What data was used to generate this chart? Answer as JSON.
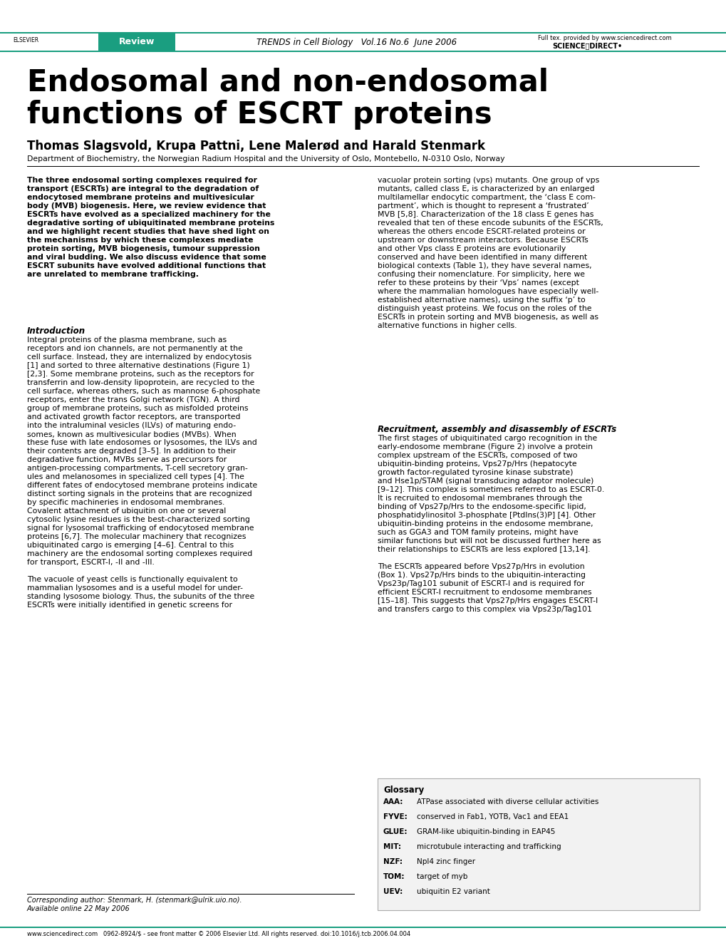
{
  "page_bg": "#ffffff",
  "teal_color": "#1a9e80",
  "link_color": "#2563a8",
  "review_label": "Review",
  "journal_header": "TRENDS in Cell Biology   Vol.16 No.6  June 2006",
  "full_text_label": "Full tex. provided by www.sciencedirect.com",
  "title_line1": "Endosomal and non-endosomal",
  "title_line2": "functions of ESCRT proteins",
  "authors": "Thomas Slagsvold, Krupa Pattni, Lene Malerød and Harald Stenmark",
  "affiliation": "Department of Biochemistry, the Norwegian Radium Hospital and the University of Oslo, Montebello, N-0310 Oslo, Norway",
  "abstract_bold_text": "The three endosomal sorting complexes required for\ntransport (ESCRTs) are integral to the degradation of\nendocytosed membrane proteins and multivesicular\nbody (MVB) biogenesis. Here, we review evidence that\nESCRTs have evolved as a specialized machinery for the\ndegradative sorting of ubiquitinated membrane proteins\nand we highlight recent studies that have shed light on\nthe mechanisms by which these complexes mediate\nprotein sorting, MVB biogenesis, tumour suppression\nand viral budding. We also discuss evidence that some\nESCRT subunits have evolved additional functions that\nare unrelated to membrane trafficking.",
  "right_abstract_text": "vacuolar protein sorting (vps) mutants. One group of vps\nmutants, called class E, is characterized by an enlarged\nmultilamellar endocytic compartment, the ‘class E com-\npartment’, which is thought to represent a ‘frustrated’\nMVB [5,8]. Characterization of the 18 class E genes has\nrevealed that ten of these encode subunits of the ESCRTs,\nwhereas the others encode ESCRT-related proteins or\nupstream or downstream interactors. Because ESCRTs\nand other Vps class E proteins are evolutionarily\nconserved and have been identified in many different\nbiological contexts (Table 1), they have several names,\nconfusing their nomenclature. For simplicity, here we\nrefer to these proteins by their ‘Vps’ names (except\nwhere the mammalian homologues have especially well-\nestablished alternative names), using the suffix ‘p’ to\ndistinguish yeast proteins. We focus on the roles of the\nESCRTs in protein sorting and MVB biogenesis, as well as\nalternative functions in higher cells.",
  "intro_heading": "Introduction",
  "intro_text": "Integral proteins of the plasma membrane, such as\nreceptors and ion channels, are not permanently at the\ncell surface. Instead, they are internalized by endocytosis\n[1] and sorted to three alternative destinations (Figure 1)\n[2,3]. Some membrane proteins, such as the receptors for\ntransferrin and low-density lipoprotein, are recycled to the\ncell surface, whereas others, such as mannose 6-phosphate\nreceptors, enter the trans Golgi network (TGN). A third\ngroup of membrane proteins, such as misfolded proteins\nand activated growth factor receptors, are transported\ninto the intraluminal vesicles (ILVs) of maturing endo-\nsomes, known as multivesicular bodies (MVBs). When\nthese fuse with late endosomes or lysosomes, the ILVs and\ntheir contents are degraded [3–5]. In addition to their\ndegradative function, MVBs serve as precursors for\nantigen-processing compartments, T-cell secretory gran-\nules and melanosomes in specialized cell types [4]. The\ndifferent fates of endocytosed membrane proteins indicate\ndistinct sorting signals in the proteins that are recognized\nby specific machineries in endosomal membranes.\nCovalent attachment of ubiquitin on one or several\ncytosolic lysine residues is the best-characterized sorting\nsignal for lysosomal trafficking of endocytosed membrane\nproteins [6,7]. The molecular machinery that recognizes\nubiquitinated cargo is emerging [4–6]. Central to this\nmachinery are the endosomal sorting complexes required\nfor transport, ESCRT-I, -II and -III.\n\nThe vacuole of yeast cells is functionally equivalent to\nmammalian lysosomes and is a useful model for under-\nstanding lysosome biology. Thus, the subunits of the three\nESCRTs were initially identified in genetic screens for",
  "recruit_heading": "Recruitment, assembly and disassembly of ESCRTs",
  "recruit_text": "The first stages of ubiquitinated cargo recognition in the\nearly-endosome membrane (Figure 2) involve a protein\ncomplex upstream of the ESCRTs, composed of two\nubiquitin-binding proteins, Vps27p/Hrs (hepatocyte\ngrowth factor-regulated tyrosine kinase substrate)\nand Hse1p/STAM (signal transducing adaptor molecule)\n[9–12]. This complex is sometimes referred to as ESCRT-0.\nIt is recruited to endosomal membranes through the\nbinding of Vps27p/Hrs to the endosome-specific lipid,\nphosphatidylinositol 3-phosphate [PtdIns(3)P] [4]. Other\nubiquitin-binding proteins in the endosome membrane,\nsuch as GGA3 and TOM family proteins, might have\nsimilar functions but will not be discussed further here as\ntheir relationships to ESCRTs are less explored [13,14].\n\nThe ESCRTs appeared before Vps27p/Hrs in evolution\n(Box 1). Vps27p/Hrs binds to the ubiquitin-interacting\nVps23p/Tag101 subunit of ESCRT-I and is required for\nefficient ESCRT-I recruitment to endosome membranes\n[15–18]. This suggests that Vps27p/Hrs engages ESCRT-I\nand transfers cargo to this complex via Vps23p/Tag101",
  "glossary_heading": "Glossary",
  "glossary_items": [
    [
      "AAA:",
      "ATPase associated with diverse cellular activities"
    ],
    [
      "FYVE:",
      "conserved in Fab1, YOTB, Vac1 and EEA1"
    ],
    [
      "GLUE:",
      "GRAM-like ubiquitin-binding in EAP45"
    ],
    [
      "MIT:",
      "microtubule interacting and trafficking"
    ],
    [
      "NZF:",
      "Npl4 zinc finger"
    ],
    [
      "TOM:",
      "target of myb"
    ],
    [
      "UEV:",
      "ubiquitin E2 variant"
    ]
  ],
  "corresponding_author": "Corresponding author: Stenmark, H. (stenmark@ulrik.uio.no).",
  "available_online": "Available online 22 May 2006",
  "footer_text": "www.sciencedirect.com   0962-8924/$ - see front matter © 2006 Elsevier Ltd. All rights reserved. doi:10.1016/j.tcb.2006.04.004"
}
